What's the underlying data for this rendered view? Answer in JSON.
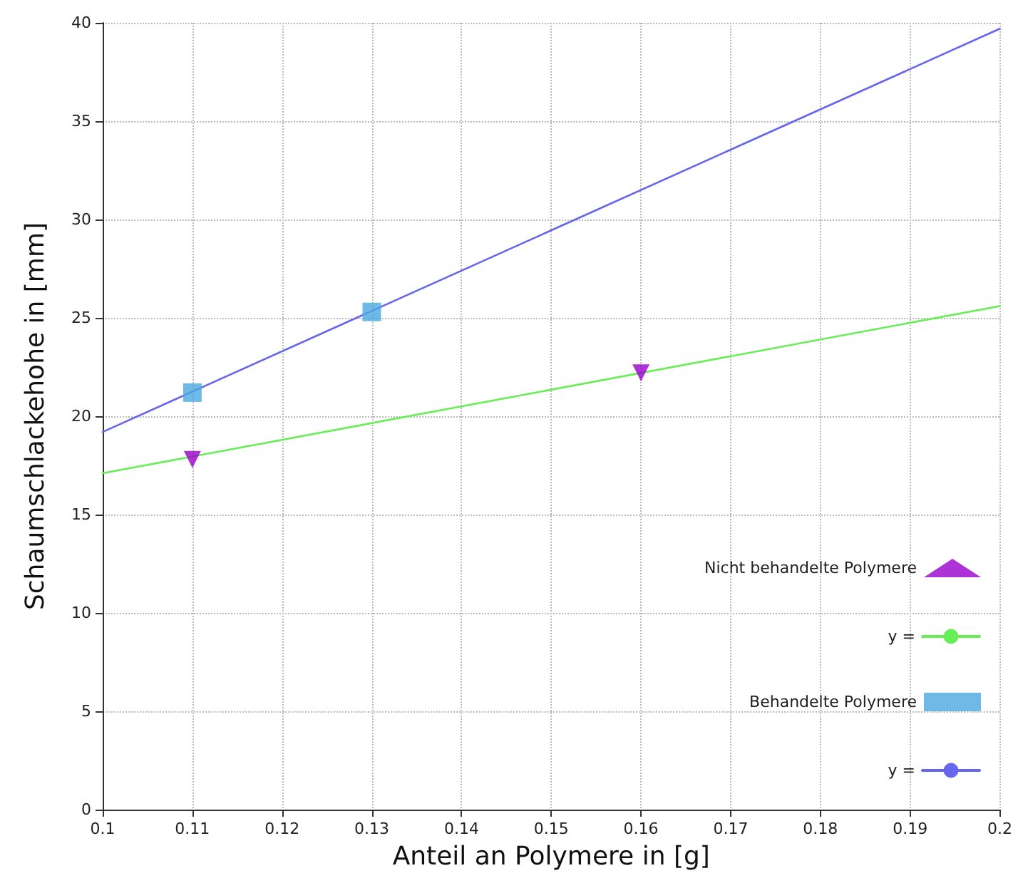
{
  "chart_data": {
    "type": "scatter",
    "xlabel": "Anteil an Polymere in [g]",
    "ylabel": "Schaumschlackehohe in [mm]",
    "xlim": [
      0.1,
      0.2
    ],
    "xticks": [
      0.1,
      0.11,
      0.12,
      0.13,
      0.14,
      0.15,
      0.16,
      0.17,
      0.18,
      0.19,
      0.2
    ],
    "ylim": [
      0,
      40
    ],
    "yticks": [
      0,
      5,
      10,
      15,
      20,
      25,
      30,
      35,
      40
    ],
    "grid": true,
    "legend": "bottom right",
    "series": [
      {
        "name": "Nicht behandelte Polymere",
        "marker": "triangle",
        "color": "#9900cc",
        "x": [
          0.11,
          0.16
        ],
        "values": [
          17.8,
          22.2
        ]
      },
      {
        "name": "y =",
        "type": "line",
        "marker": "none",
        "color": "#66ee55",
        "x": [
          0.1,
          0.2
        ],
        "values": [
          17.1,
          25.6
        ]
      },
      {
        "name": "Behandelte Polymere",
        "marker": "square",
        "color": "#4aa8e0",
        "x": [
          0.11,
          0.13
        ],
        "values": [
          21.2,
          25.3
        ]
      },
      {
        "name": "y =",
        "type": "line",
        "marker": "none",
        "color": "#6666ee",
        "x": [
          0.1,
          0.2
        ],
        "values": [
          19.2,
          39.7
        ]
      }
    ]
  }
}
